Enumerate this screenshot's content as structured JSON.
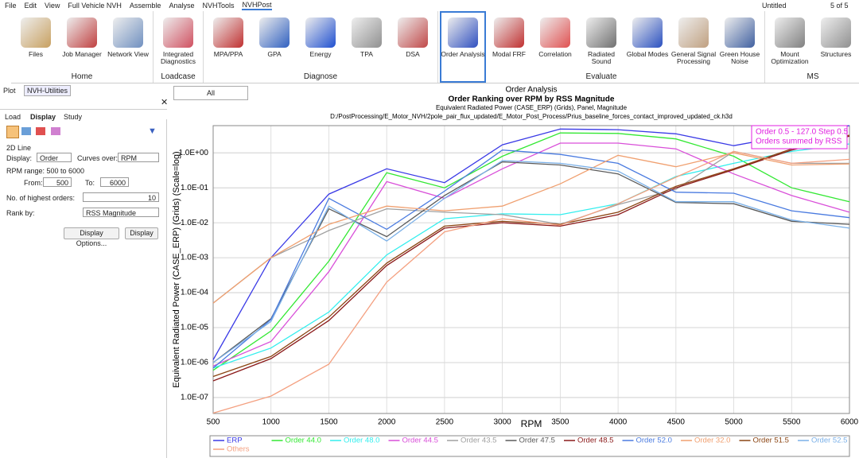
{
  "menu": [
    "File",
    "Edit",
    "View",
    "Full Vehicle NVH",
    "Assemble",
    "Analyse",
    "NVHTools",
    "NVHPost"
  ],
  "toolbar": {
    "document": "Untitled",
    "page": "5 of 5"
  },
  "ribbon": {
    "groups": [
      {
        "label": "Home",
        "items": [
          "Files",
          "Job Manager",
          "Network View"
        ]
      },
      {
        "label": "Loadcase",
        "items": [
          "Integrated Diagnostics"
        ]
      },
      {
        "label": "Diagnose",
        "items": [
          "MPA/PPA",
          "GPA",
          "Energy",
          "TPA",
          "DSA"
        ]
      },
      {
        "label": "Evaluate",
        "items": [
          "Order Analysis",
          "Modal FRF",
          "Correlation",
          "Radiated Sound",
          "Global Modes",
          "General Signal Processing",
          "Green House Noise"
        ]
      },
      {
        "label": "MS",
        "items": [
          "Mount Optimization",
          "Structures"
        ]
      }
    ]
  },
  "tabs": [
    "Plot",
    "NVH-Utilities"
  ],
  "filter": "All",
  "panel": {
    "tabs": [
      "Load",
      "Display",
      "Study"
    ],
    "section": "2D Line",
    "display_label": "Display:",
    "display_value": "Order",
    "curves_label": "Curves over:",
    "curves_value": "RPM",
    "range_text": "RPM range: 500 to 6000",
    "from_label": "From:",
    "from_value": "500",
    "to_label": "To:",
    "to_value": "6000",
    "orders_label": "No. of highest orders:",
    "orders_value": "10",
    "rank_label": "Rank by:",
    "rank_value": "RSS Magnitude",
    "buttons": [
      "Display Options...",
      "Display"
    ]
  },
  "chart_data": {
    "type": "line",
    "window_title": "Order Analysis",
    "title": "Order Ranking over RPM by RSS Magnitude",
    "subtitle": "Equivalent Radiated Power (CASE_ERP) (Grids), Panel, Magnitude",
    "file": "D:/PostProcessing/E_Motor_NVH/2pole_pair_flux_updated/E_Motor_Post_Process/Prius_baseline_forces_contact_improved_updated_ck.h3d",
    "xlabel": "RPM",
    "ylabel": "Equivalent Radiated Power (CASE_ERP) (Grids) (Scale=log)",
    "annotation": [
      "Order 0.5 - 127.0 Step 0.5",
      "Orders summed by RSS"
    ],
    "ylog": true,
    "grid": true,
    "legend": "bottom",
    "x": [
      500,
      1000,
      1500,
      2000,
      2500,
      3000,
      3500,
      4000,
      4500,
      5000,
      5500,
      6000
    ],
    "xlim": [
      500,
      6000
    ],
    "xticks": [
      500,
      1000,
      1500,
      2000,
      2500,
      3000,
      3500,
      4000,
      4500,
      5000,
      5500,
      6000
    ],
    "ylim": [
      3.5e-08,
      6
    ],
    "yticks": [
      {
        "value": 1e-07,
        "label": "1.0E-07"
      },
      {
        "value": 1e-06,
        "label": "1.0E-06"
      },
      {
        "value": 1e-05,
        "label": "1.0E-05"
      },
      {
        "value": 0.0001,
        "label": "1.0E-04"
      },
      {
        "value": 0.001,
        "label": "1.0E-03"
      },
      {
        "value": 0.01,
        "label": "1.0E-02"
      },
      {
        "value": 0.1,
        "label": "1.0E-01"
      },
      {
        "value": 1,
        "label": "1.0E+00"
      }
    ],
    "series": [
      {
        "name": "ERP",
        "color": "#3a3ae6",
        "values": [
          1.2e-06,
          0.001,
          0.066,
          0.35,
          0.14,
          1.7,
          4.8,
          4.6,
          3.5,
          1.6,
          3.2,
          6
        ]
      },
      {
        "name": "Order 44.0",
        "color": "#33e833",
        "values": [
          6e-07,
          8e-06,
          0.0008,
          0.27,
          0.1,
          0.8,
          3.7,
          3.6,
          2.5,
          0.8,
          0.1,
          0.04
        ]
      },
      {
        "name": "Order 48.0",
        "color": "#33eeee",
        "values": [
          7e-07,
          2.6e-06,
          2.8e-05,
          0.0012,
          0.013,
          0.018,
          0.017,
          0.035,
          0.21,
          0.5,
          1.1,
          1.8
        ]
      },
      {
        "name": "Order 44.5",
        "color": "#d94fd9",
        "values": [
          8e-07,
          4e-06,
          0.0004,
          0.15,
          0.05,
          0.35,
          1.9,
          1.9,
          1.3,
          0.25,
          0.06,
          0.02
        ]
      },
      {
        "name": "Order 43.5",
        "color": "#a0a0a0",
        "values": [
          5e-05,
          0.001,
          0.006,
          0.025,
          0.02,
          0.017,
          0.009,
          0.033,
          0.09,
          1.1,
          0.5,
          0.5
        ]
      },
      {
        "name": "Order 47.5",
        "color": "#5a5a5a",
        "values": [
          1e-06,
          1.8e-05,
          0.025,
          0.004,
          0.06,
          0.55,
          0.45,
          0.25,
          0.038,
          0.035,
          0.011,
          0.009
        ]
      },
      {
        "name": "Order 48.5",
        "color": "#8b1a1a",
        "values": [
          3e-07,
          1.3e-06,
          1.6e-05,
          0.0006,
          0.007,
          0.01,
          0.008,
          0.017,
          0.1,
          0.33,
          1.2,
          3
        ]
      },
      {
        "name": "Order 52.0",
        "color": "#4a7be0",
        "values": [
          7e-07,
          1.7e-05,
          0.05,
          0.0065,
          0.08,
          1.2,
          0.9,
          0.5,
          0.075,
          0.07,
          0.022,
          0.014
        ]
      },
      {
        "name": "Order 32.0",
        "color": "#f0a070",
        "values": [
          5e-05,
          0.001,
          0.009,
          0.03,
          0.022,
          0.03,
          0.13,
          0.85,
          0.4,
          1,
          0.45,
          0.48
        ]
      },
      {
        "name": "Order 51.5",
        "color": "#8b4513",
        "values": [
          4e-07,
          1.5e-06,
          2e-05,
          0.0007,
          0.008,
          0.011,
          0.009,
          0.02,
          0.11,
          0.35,
          1.3,
          3.2
        ]
      },
      {
        "name": "Order 52.5",
        "color": "#7ab0e8",
        "values": [
          1e-06,
          1.5e-05,
          0.03,
          0.003,
          0.05,
          0.6,
          0.5,
          0.3,
          0.04,
          0.04,
          0.012,
          0.007
        ]
      },
      {
        "name": "Others",
        "color": "#f4a080",
        "values": [
          3.6e-08,
          1.1e-07,
          9e-07,
          0.0002,
          0.0055,
          0.013,
          0.0085,
          0.035,
          0.2,
          1.1,
          0.5,
          0.65
        ]
      }
    ]
  }
}
